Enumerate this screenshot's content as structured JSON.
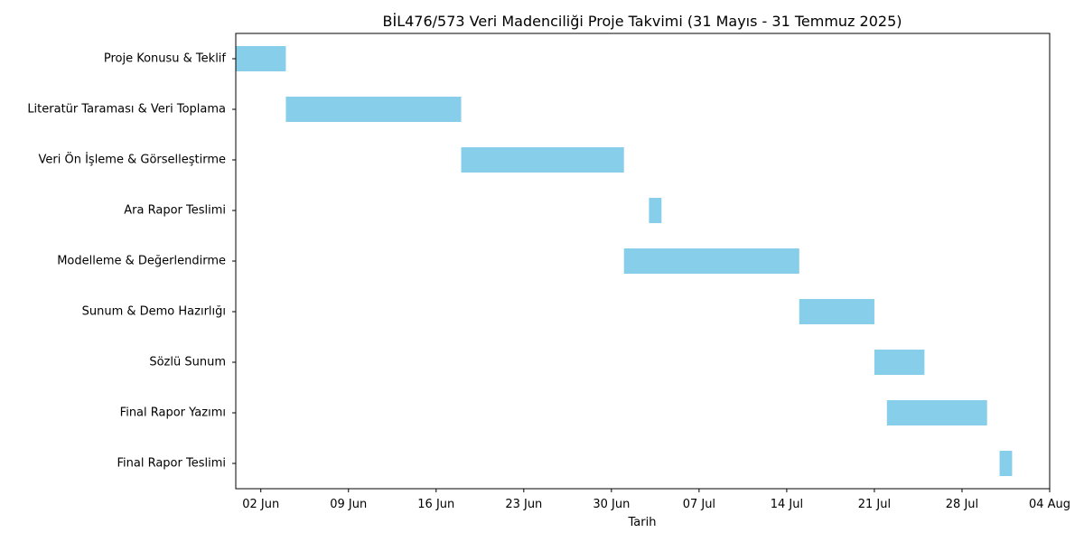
{
  "chart_data": {
    "type": "gantt",
    "title": "BİL476/573 Veri Madenciliği Proje Takvimi (31 Mayıs - 31 Temmuz 2025)",
    "xlabel": "Tarih",
    "ylabel": "",
    "bar_color": "#87CEEB",
    "x_range": [
      "2025-05-31",
      "2025-08-04"
    ],
    "x_ticks": [
      {
        "date": "2025-06-02",
        "label": "02 Jun"
      },
      {
        "date": "2025-06-09",
        "label": "09 Jun"
      },
      {
        "date": "2025-06-16",
        "label": "16 Jun"
      },
      {
        "date": "2025-06-23",
        "label": "23 Jun"
      },
      {
        "date": "2025-06-30",
        "label": "30 Jun"
      },
      {
        "date": "2025-07-07",
        "label": "07 Jul"
      },
      {
        "date": "2025-07-14",
        "label": "14 Jul"
      },
      {
        "date": "2025-07-21",
        "label": "21 Jul"
      },
      {
        "date": "2025-07-28",
        "label": "28 Jul"
      },
      {
        "date": "2025-08-04",
        "label": "04 Aug"
      }
    ],
    "tasks": [
      {
        "name": "Proje Konusu & Teklif",
        "start": "2025-05-31",
        "end": "2025-06-04"
      },
      {
        "name": "Literatür Taraması & Veri Toplama",
        "start": "2025-06-04",
        "end": "2025-06-18"
      },
      {
        "name": "Veri Ön İşleme & Görselleştirme",
        "start": "2025-06-18",
        "end": "2025-07-01"
      },
      {
        "name": "Ara Rapor Teslimi",
        "start": "2025-07-03",
        "end": "2025-07-04"
      },
      {
        "name": "Modelleme & Değerlendirme",
        "start": "2025-07-01",
        "end": "2025-07-15"
      },
      {
        "name": "Sunum & Demo Hazırlığı",
        "start": "2025-07-15",
        "end": "2025-07-21"
      },
      {
        "name": "Sözlü Sunum",
        "start": "2025-07-21",
        "end": "2025-07-25"
      },
      {
        "name": "Final Rapor Yazımı",
        "start": "2025-07-22",
        "end": "2025-07-30"
      },
      {
        "name": "Final Rapor Teslimi",
        "start": "2025-07-31",
        "end": "2025-08-01"
      }
    ]
  }
}
